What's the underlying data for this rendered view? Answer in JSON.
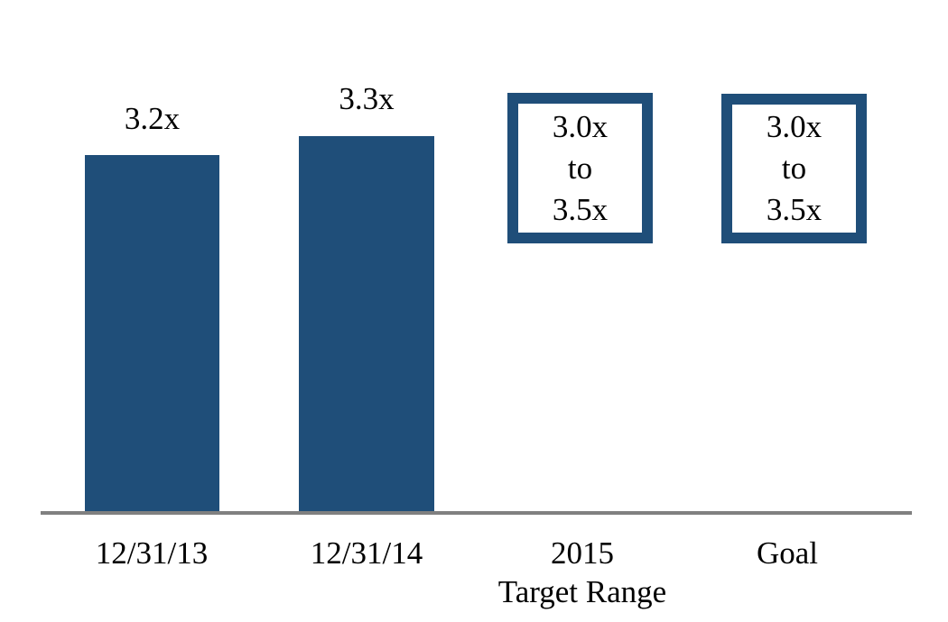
{
  "chart_data": {
    "type": "bar",
    "categories": [
      "12/31/13",
      "12/31/14",
      "2015 Target Range",
      "Goal"
    ],
    "values": [
      3.2,
      3.3,
      null,
      null
    ],
    "data_labels": [
      "3.2x",
      "3.3x",
      "",
      ""
    ],
    "annotations": [
      {
        "category": "2015 Target Range",
        "text": "3.0x to 3.5x",
        "style": "outlined-box"
      },
      {
        "category": "Goal",
        "text": "3.0x to 3.5x",
        "style": "outlined-box"
      }
    ],
    "title": "",
    "xlabel": "",
    "ylabel": "",
    "ylim": [
      0,
      4
    ],
    "grid": false,
    "legend": false,
    "bar_color": "#1F4E79",
    "box_border_color": "#1F4E79",
    "axis_color": "#808080"
  },
  "display": {
    "bar1_label": "3.2x",
    "bar2_label": "3.3x",
    "box1_text": "3.0x\nto\n3.5x",
    "box2_text": "3.0x\nto\n3.5x",
    "cat1": "12/31/13",
    "cat2": "12/31/14",
    "cat3": "2015\nTarget Range",
    "cat4": "Goal"
  }
}
